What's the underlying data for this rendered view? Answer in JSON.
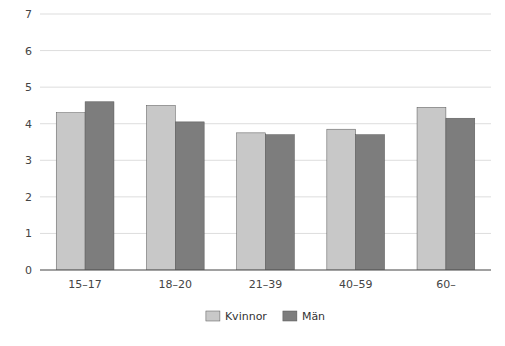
{
  "chart_data": {
    "type": "bar",
    "categories": [
      "15–17",
      "18–20",
      "21–39",
      "40–59",
      "60–"
    ],
    "series": [
      {
        "name": "Kvinnor",
        "color": "#c8c8c8",
        "values": [
          4.3,
          4.5,
          3.75,
          3.85,
          4.45
        ]
      },
      {
        "name": "Män",
        "color": "#7d7d7d",
        "values": [
          4.6,
          4.05,
          3.7,
          3.7,
          4.15
        ]
      }
    ],
    "ylim": [
      0,
      7
    ],
    "yticks": [
      0,
      1,
      2,
      3,
      4,
      5,
      6,
      7
    ],
    "grid": true,
    "legend": "bottom"
  }
}
